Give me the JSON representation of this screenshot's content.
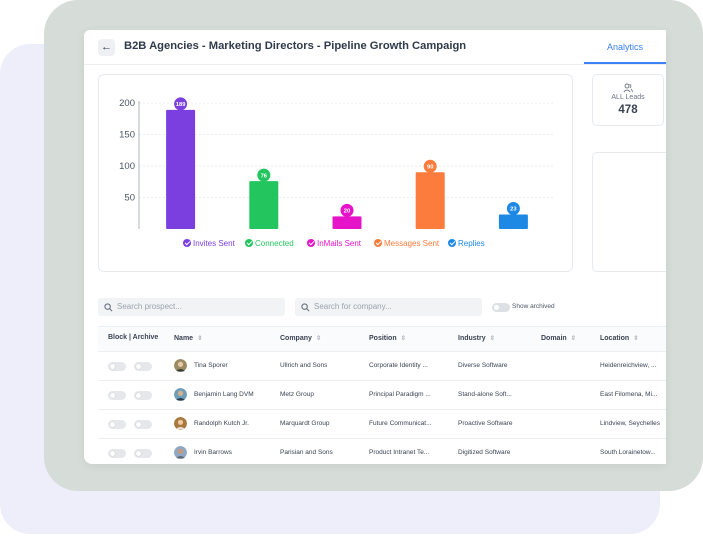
{
  "header": {
    "back_icon": "arrow-left-icon",
    "title": "B2B Agencies - Marketing Directors - Pipeline Growth Campaign",
    "tab": "Analytics",
    "accent": "#3b82f6"
  },
  "stats": {
    "leads_label": "ALL Leads",
    "leads_value": "478",
    "leads_icon": "users-icon"
  },
  "chart_data": {
    "type": "bar",
    "categories": [
      "Invites Sent",
      "Connected",
      "InMails Sent",
      "Messages Sent",
      "Replies"
    ],
    "values": [
      189,
      76,
      20,
      90,
      23
    ],
    "colors": [
      "#7b3fe0",
      "#22c55e",
      "#e514c8",
      "#fb7c3c",
      "#1e88e5"
    ],
    "yticks": [
      50,
      100,
      150,
      200
    ],
    "ylim": [
      0,
      200
    ],
    "grid": true,
    "legend": "bottom"
  },
  "search": {
    "prospect_placeholder": "Search prospect...",
    "company_placeholder": "Search for company...",
    "archived_label": "Show archived"
  },
  "table": {
    "columns": [
      "Block | Archive",
      "Name",
      "Company",
      "Position",
      "Industry",
      "Domain",
      "Location"
    ],
    "rows": [
      {
        "name": "Tina Sporer",
        "company": "Ullrich and Sons",
        "position": "Corporate Identity ...",
        "industry": "Diverse Software",
        "domain": "",
        "location": "Heidenreichview, ..."
      },
      {
        "name": "Benjamin Lang DVM",
        "company": "Metz Group",
        "position": "Principal Paradigm ...",
        "industry": "Stand-alone Soft...",
        "domain": "",
        "location": "East Filomena, Mi..."
      },
      {
        "name": "Randolph Kutch Jr.",
        "company": "Marquardt Group",
        "position": "Future Communicat...",
        "industry": "Proactive Software",
        "domain": "",
        "location": "Lindview, Seychelles"
      },
      {
        "name": "Irvin Barrows",
        "company": "Parisian and Sons",
        "position": "Product Intranet Te...",
        "industry": "Digitized Software",
        "domain": "",
        "location": "South Lorainetow..."
      }
    ]
  }
}
